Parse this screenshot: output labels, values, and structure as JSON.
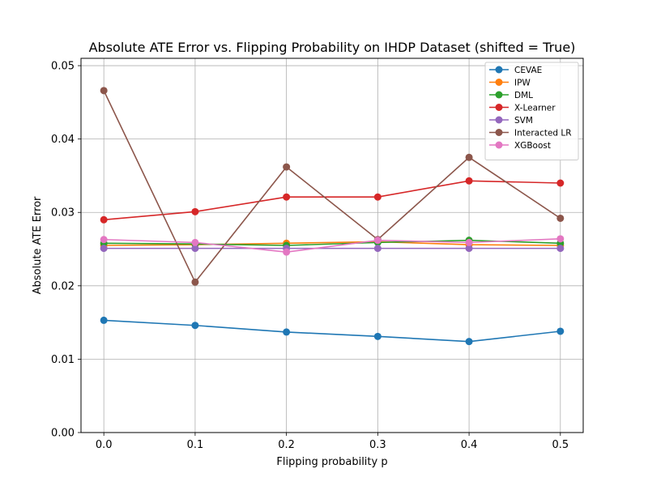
{
  "chart_data": {
    "type": "line",
    "title": "Absolute ATE Error vs. Flipping Probability on IHDP Dataset (shifted = True)",
    "xlabel": "Flipping probability p",
    "ylabel": "Absolute ATE Error",
    "x": [
      0.0,
      0.1,
      0.2,
      0.3,
      0.4,
      0.5
    ],
    "xticks": [
      "0.0",
      "0.1",
      "0.2",
      "0.3",
      "0.4",
      "0.5"
    ],
    "xlim": [
      -0.025,
      0.525
    ],
    "ylim": [
      0.0,
      0.051
    ],
    "yticks": [
      "0.00",
      "0.01",
      "0.02",
      "0.03",
      "0.04",
      "0.05"
    ],
    "grid": true,
    "legend_position": "top-right",
    "series": [
      {
        "name": "CEVAE",
        "color": "#1f77b4",
        "values": [
          0.0153,
          0.0146,
          0.0137,
          0.0131,
          0.0124,
          0.0138
        ]
      },
      {
        "name": "IPW",
        "color": "#ff7f0e",
        "values": [
          0.0255,
          0.0256,
          0.0258,
          0.026,
          0.0256,
          0.0255
        ]
      },
      {
        "name": "DML",
        "color": "#2ca02c",
        "values": [
          0.0258,
          0.0257,
          0.0255,
          0.0259,
          0.0262,
          0.0258
        ]
      },
      {
        "name": "X-Learner",
        "color": "#d62728",
        "values": [
          0.029,
          0.0301,
          0.0321,
          0.0321,
          0.0343,
          0.034
        ]
      },
      {
        "name": "SVM",
        "color": "#9467bd",
        "values": [
          0.0251,
          0.0251,
          0.0251,
          0.0251,
          0.0251,
          0.0251
        ]
      },
      {
        "name": "Interacted LR",
        "color": "#8c564b",
        "values": [
          0.0466,
          0.0205,
          0.0362,
          0.0263,
          0.0375,
          0.0292
        ]
      },
      {
        "name": "XGBoost",
        "color": "#e377c2",
        "values": [
          0.0263,
          0.0259,
          0.0246,
          0.0262,
          0.0259,
          0.0264
        ]
      }
    ]
  }
}
